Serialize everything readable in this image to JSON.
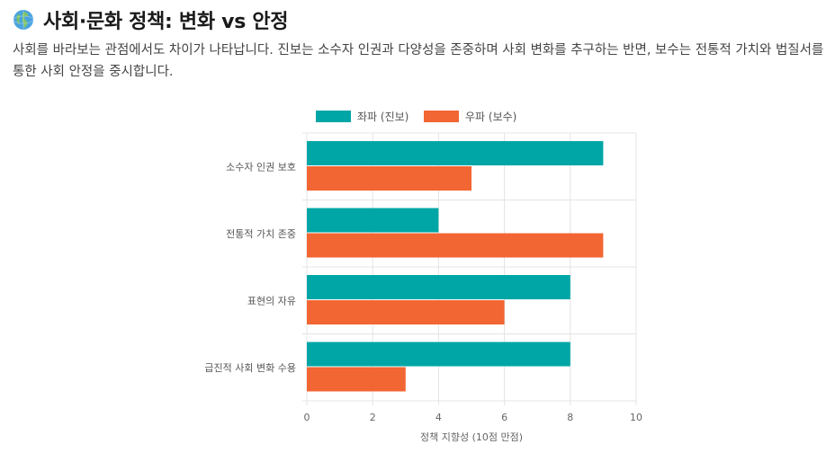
{
  "header": {
    "title": "사회·문화 정책: 변화 vs 안정",
    "description": "사회를 바라보는 관점에서도 차이가 나타납니다. 진보는 소수자 인권과 다양성을 존중하며 사회 변화를 추구하는 반면, 보수는 전통적 가치와 법질서를 통한 사회 안정을 중시합니다.",
    "icon": "globe-icon"
  },
  "chart_data": {
    "type": "bar",
    "orientation": "horizontal",
    "categories": [
      "소수자 인권 보호",
      "전통적 가치 존중",
      "표현의 자유",
      "급진적 사회 변화 수용"
    ],
    "series": [
      {
        "name": "좌파 (진보)",
        "values": [
          9,
          4,
          8,
          8
        ],
        "color": "#00A6A6"
      },
      {
        "name": "우파 (보수)",
        "values": [
          5,
          9,
          6,
          3
        ],
        "color": "#F26633"
      }
    ],
    "xlabel": "정책 지향성 (10점 만점)",
    "xlim": [
      0,
      10
    ],
    "xticks": [
      0,
      2,
      4,
      6,
      8,
      10
    ],
    "legend_position": "top",
    "grid": true
  }
}
